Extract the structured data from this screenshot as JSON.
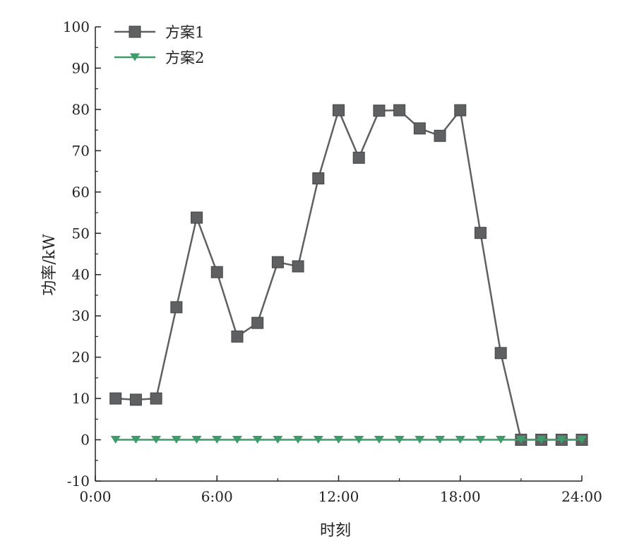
{
  "chart_data": {
    "type": "line",
    "title": "",
    "xlabel": "时刻",
    "ylabel": "功率/kW",
    "xlim": [
      0,
      24
    ],
    "ylim": [
      -10,
      100
    ],
    "xticks": [
      0,
      6,
      12,
      18,
      24
    ],
    "xtick_labels": [
      "0:00",
      "6:00",
      "12:00",
      "18:00",
      "24:00"
    ],
    "yticks": [
      -10,
      0,
      10,
      20,
      30,
      40,
      50,
      60,
      70,
      80,
      90,
      100
    ],
    "ytick_labels": [
      "-10",
      "0",
      "10",
      "20",
      "30",
      "40",
      "50",
      "60",
      "70",
      "80",
      "90",
      "100"
    ],
    "grid": false,
    "legend_position": "top-left",
    "x": [
      1,
      2,
      3,
      4,
      5,
      6,
      7,
      8,
      9,
      10,
      11,
      12,
      13,
      14,
      15,
      16,
      17,
      18,
      19,
      20,
      21,
      22,
      23,
      24
    ],
    "series": [
      {
        "name": "方案1",
        "marker": "square",
        "color": "#5f6062",
        "values": [
          10,
          9.7,
          10,
          32.1,
          53.8,
          40.6,
          25,
          28.3,
          43,
          42,
          63.3,
          79.8,
          68.3,
          79.7,
          79.8,
          75.4,
          73.6,
          79.8,
          50.1,
          21,
          0,
          0,
          0,
          0
        ]
      },
      {
        "name": "方案2",
        "marker": "triangle-down",
        "color": "#3e9b6a",
        "values": [
          0,
          0,
          0,
          0,
          0,
          0,
          0,
          0,
          0,
          0,
          0,
          0,
          0,
          0,
          0,
          0,
          0,
          0,
          0,
          0,
          0,
          0,
          0,
          0
        ]
      }
    ]
  }
}
